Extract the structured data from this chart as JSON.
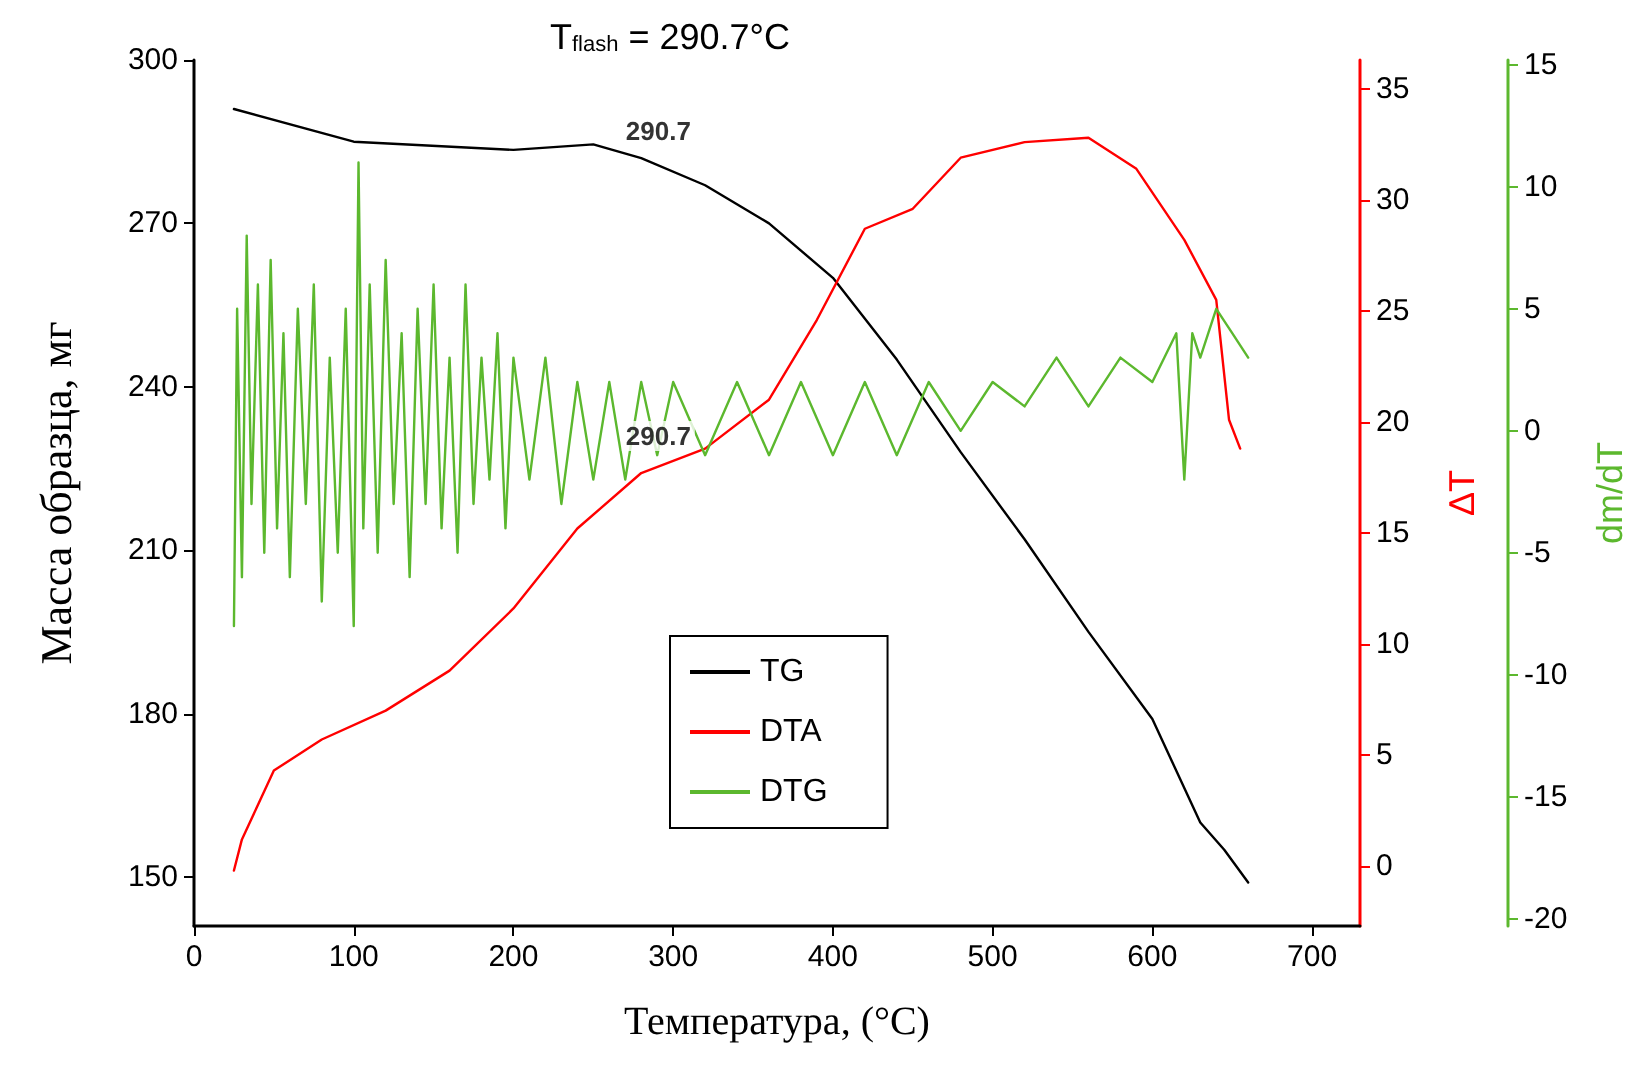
{
  "chart_data": {
    "type": "line",
    "title": "T$_{flash}$ = 290.7°C",
    "xlabel": "Температура, (°C)",
    "ylabel": "Масса образца, мг",
    "y2label": "ΔT",
    "y3label": "dm/dT",
    "xlim": [
      0,
      730
    ],
    "xticks": [
      0,
      100,
      200,
      300,
      400,
      500,
      600,
      700
    ],
    "ylim": [
      141,
      300
    ],
    "yticks": [
      150,
      180,
      210,
      240,
      270,
      300
    ],
    "y2lim": [
      -2.7,
      36.3
    ],
    "y2ticks": [
      0,
      5,
      10,
      15,
      20,
      25,
      30,
      35
    ],
    "y3lim": [
      -20.3,
      15.2
    ],
    "y3ticks": [
      -20,
      -15,
      -10,
      -5,
      0,
      5,
      10,
      15
    ],
    "grid": false,
    "legend": "bottom",
    "marker": "none",
    "line_style": "solid",
    "annotations": [
      {
        "text": "290.7",
        "x": 290.7,
        "y": 282
      },
      {
        "text": "290.7",
        "x": 290.7,
        "y": 226
      }
    ],
    "series": [
      {
        "name": "TG",
        "color": "#000000",
        "x": [
          25,
          100,
          200,
          250,
          280,
          320,
          360,
          400,
          440,
          480,
          520,
          560,
          600,
          630,
          645,
          660
        ],
        "values": [
          291,
          285,
          283.5,
          284.5,
          282,
          277,
          270,
          260,
          245,
          228,
          212,
          195,
          179,
          160,
          155,
          149
        ]
      },
      {
        "name": "DTA",
        "color": "#ff0000",
        "axis": "y2",
        "x": [
          25,
          30,
          50,
          80,
          120,
          160,
          200,
          240,
          280,
          320,
          360,
          390,
          420,
          450,
          480,
          520,
          560,
          590,
          620,
          640,
          648,
          655
        ],
        "values": [
          -0.2,
          1.2,
          4.3,
          5.7,
          7.0,
          8.8,
          11.6,
          15.2,
          17.7,
          18.8,
          21.0,
          24.6,
          28.7,
          29.6,
          31.9,
          32.6,
          32.8,
          31.4,
          28.2,
          25.5,
          20.1,
          18.8
        ]
      },
      {
        "name": "DTG",
        "color": "#5cb82e",
        "axis": "y3",
        "x": [
          25,
          27,
          30,
          33,
          36,
          40,
          44,
          48,
          52,
          56,
          60,
          65,
          70,
          75,
          80,
          85,
          90,
          95,
          100,
          103,
          106,
          110,
          115,
          120,
          125,
          130,
          135,
          140,
          145,
          150,
          155,
          160,
          165,
          170,
          175,
          180,
          185,
          190,
          195,
          200,
          210,
          220,
          230,
          240,
          250,
          260,
          270,
          280,
          290,
          300,
          320,
          340,
          360,
          380,
          400,
          420,
          440,
          460,
          480,
          500,
          520,
          540,
          560,
          580,
          600,
          615,
          620,
          625,
          630,
          640,
          650,
          660
        ],
        "values": [
          -8,
          5,
          -6,
          8,
          -3,
          6,
          -5,
          7,
          -4,
          4,
          -6,
          5,
          -3,
          6,
          -7,
          3,
          -5,
          5,
          -8,
          11,
          -4,
          6,
          -5,
          7,
          -3,
          4,
          -6,
          5,
          -3,
          6,
          -4,
          3,
          -5,
          6,
          -3,
          3,
          -2,
          4,
          -4,
          3,
          -2,
          3,
          -3,
          2,
          -2,
          2,
          -2,
          2,
          -1,
          2,
          -1,
          2,
          -1,
          2,
          -1,
          2,
          -1,
          2,
          0,
          2,
          1,
          3,
          1,
          3,
          2,
          4,
          -2,
          4,
          3,
          5,
          4,
          3
        ]
      }
    ]
  }
}
